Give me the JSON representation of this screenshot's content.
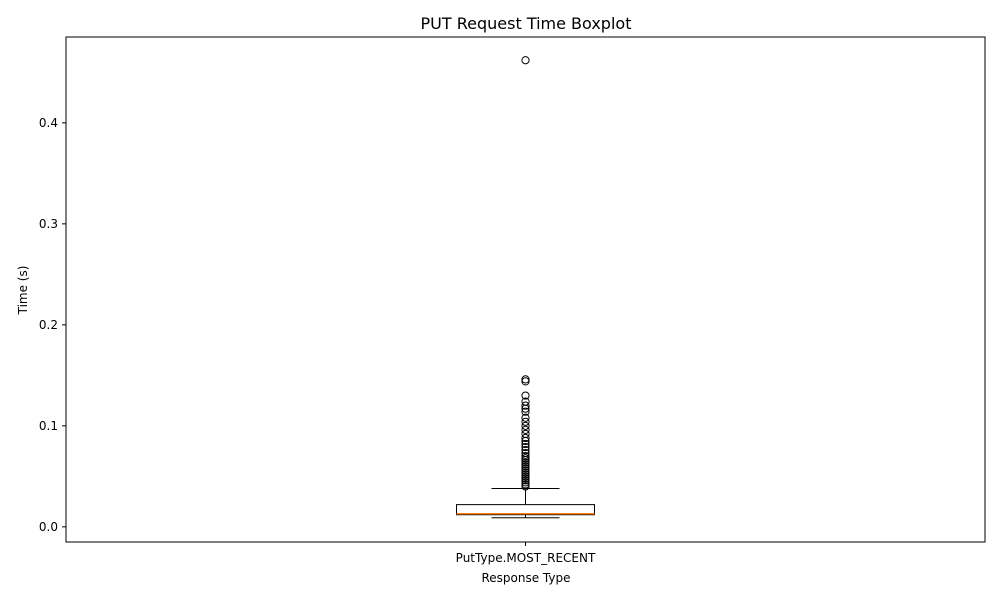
{
  "chart_data": {
    "type": "boxplot",
    "title": "PUT Request Time Boxplot",
    "xlabel": "Response Type",
    "ylabel": "Time (s)",
    "categories": [
      "PutType.MOST_RECENT"
    ],
    "ylim": [
      -0.015,
      0.485
    ],
    "yticks": [
      0.0,
      0.1,
      0.2,
      0.3,
      0.4
    ],
    "ytick_labels": [
      "0.0",
      "0.1",
      "0.2",
      "0.3",
      "0.4"
    ],
    "grid": false,
    "legend": "none",
    "box": {
      "whisker_low": 0.009,
      "q1": 0.012,
      "median": 0.013,
      "q3": 0.022,
      "whisker_high": 0.038
    },
    "outliers": [
      0.462,
      0.146,
      0.144,
      0.13,
      0.124,
      0.12,
      0.117,
      0.114,
      0.108,
      0.104,
      0.1,
      0.096,
      0.092,
      0.088,
      0.085,
      0.082,
      0.079,
      0.076,
      0.073,
      0.07,
      0.068,
      0.066,
      0.064,
      0.062,
      0.06,
      0.058,
      0.056,
      0.054,
      0.052,
      0.05,
      0.048,
      0.046,
      0.044,
      0.042,
      0.04
    ],
    "colors": {
      "box": "#000000",
      "median": "#ff7f0e",
      "outlier": "#000000"
    }
  }
}
